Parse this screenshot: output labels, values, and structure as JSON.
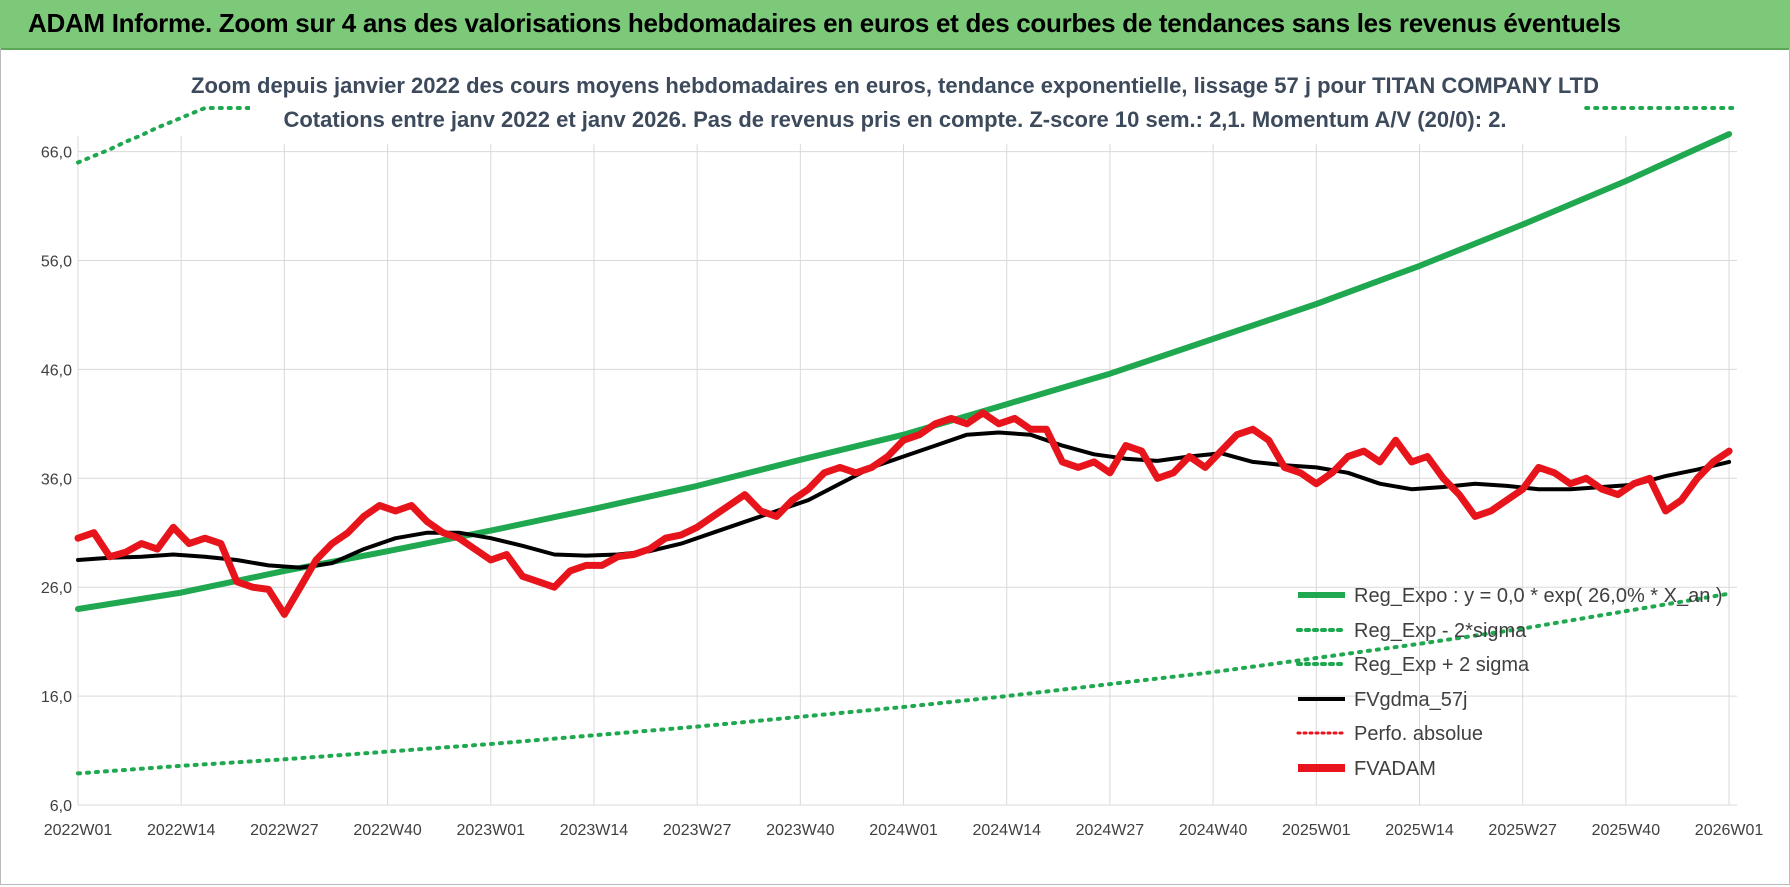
{
  "header": {
    "title": "ADAM Informe. Zoom sur 4 ans des valorisations hebdomadaires en euros et des courbes de tendances sans les revenus éventuels"
  },
  "colors": {
    "header_bg": "#7dc97a",
    "green": "#1fa84f",
    "black": "#000000",
    "red": "#e8141b"
  },
  "chart_data": {
    "type": "line",
    "title": "Zoom depuis janvier 2022 des cours moyens hebdomadaires en euros, tendance exponentielle, lissage 57 j pour TITAN COMPANY LTD",
    "subtitle": "Cotations entre janv 2022 et janv 2026. Pas de revenus pris en compte. Z-score 10 sem.: 2,1. Momentum A/V (20/0): 2.",
    "xlabel": "",
    "ylabel": "",
    "ylim": [
      6,
      70
    ],
    "yticks": [
      "66,0",
      "56,0",
      "46,0",
      "36,0",
      "26,0",
      "16,0",
      "6,0"
    ],
    "ytick_values": [
      66,
      56,
      46,
      36,
      26,
      16,
      6
    ],
    "xlim": [
      0,
      209
    ],
    "xticks": [
      "2022W01",
      "2022W14",
      "2022W27",
      "2022W40",
      "2023W01",
      "2023W14",
      "2023W27",
      "2023W40",
      "2024W01",
      "2024W14",
      "2024W27",
      "2024W40",
      "2025W01",
      "2025W14",
      "2025W27",
      "2025W40",
      "2026W01"
    ],
    "xtick_values": [
      0,
      13,
      26,
      39,
      52,
      65,
      78,
      91,
      104,
      117,
      130,
      143,
      156,
      169,
      182,
      195,
      208
    ],
    "grid": true,
    "legend_position": "bottom-right",
    "legend": [
      {
        "label": "Reg_Expo : y = 0,0 * exp( 26,0% * X_an )",
        "color": "#1fa84f",
        "style": "solid"
      },
      {
        "label": "Reg_Exp - 2*sigma",
        "color": "#1fa84f",
        "style": "dotted"
      },
      {
        "label": "Reg_Exp + 2 sigma",
        "color": "#1fa84f",
        "style": "dotted"
      },
      {
        "label": "FVgdma_57j",
        "color": "#000000",
        "style": "solid"
      },
      {
        "label": "Perfo. absolue",
        "color": "#e8141b",
        "style": "dotted"
      },
      {
        "label": "FVADAM",
        "color": "#e8141b",
        "style": "thick"
      }
    ],
    "series": [
      {
        "name": "Reg_Expo",
        "style": "solid-thick",
        "color": "#1fa84f",
        "x": [
          0,
          13,
          26,
          39,
          52,
          65,
          78,
          91,
          104,
          117,
          130,
          143,
          156,
          169,
          182,
          195,
          208
        ],
        "values": [
          24.0,
          25.5,
          27.5,
          29.3,
          31.2,
          33.2,
          35.3,
          37.7,
          40.0,
          42.8,
          45.6,
          48.8,
          52.0,
          55.5,
          59.3,
          63.3,
          67.6
        ]
      },
      {
        "name": "Reg_Exp - 2*sigma",
        "style": "dotted",
        "color": "#1fa84f",
        "x": [
          0,
          13,
          26,
          39,
          52,
          65,
          78,
          91,
          104,
          117,
          130,
          143,
          156,
          169,
          182,
          195,
          208
        ],
        "values": [
          8.9,
          9.6,
          10.2,
          10.9,
          11.6,
          12.4,
          13.2,
          14.1,
          15.0,
          16.0,
          17.1,
          18.2,
          19.5,
          20.8,
          22.2,
          23.8,
          25.4
        ]
      },
      {
        "name": "Reg_Exp + 2 sigma",
        "style": "dotted",
        "color": "#1fa84f",
        "x": [
          0,
          2,
          4,
          6,
          8,
          10,
          12,
          14,
          16,
          18,
          20,
          22,
          24,
          190,
          195,
          200,
          205,
          209
        ],
        "values": [
          65.0,
          65.6,
          66.2,
          66.9,
          67.5,
          68.2,
          68.8,
          69.4,
          70.0,
          70.0,
          70.0,
          70.0,
          70.0,
          70.0,
          70.0,
          70.0,
          70.0,
          70.0
        ],
        "segments": [
          [
            0,
            24
          ],
          [
            190,
            209
          ]
        ]
      },
      {
        "name": "FVgdma_57j",
        "style": "solid",
        "color": "#000000",
        "x": [
          0,
          4,
          8,
          12,
          16,
          20,
          24,
          28,
          32,
          36,
          40,
          44,
          48,
          52,
          56,
          60,
          64,
          68,
          72,
          76,
          80,
          84,
          88,
          92,
          96,
          100,
          104,
          108,
          112,
          116,
          120,
          124,
          128,
          132,
          136,
          140,
          144,
          148,
          152,
          156,
          160,
          164,
          168,
          172,
          176,
          180,
          184,
          188,
          192,
          196,
          200,
          204,
          208
        ],
        "values": [
          28.5,
          28.7,
          28.8,
          29.0,
          28.8,
          28.5,
          28.0,
          27.8,
          28.2,
          29.5,
          30.5,
          31.0,
          31.0,
          30.5,
          29.8,
          29.0,
          28.9,
          29.0,
          29.3,
          30.0,
          31.0,
          32.0,
          33.0,
          34.0,
          35.5,
          37.0,
          38.0,
          39.0,
          40.0,
          40.2,
          40.0,
          39.0,
          38.2,
          37.8,
          37.6,
          38.0,
          38.3,
          37.5,
          37.2,
          37.0,
          36.5,
          35.5,
          35.0,
          35.2,
          35.5,
          35.3,
          35.0,
          35.0,
          35.2,
          35.4,
          36.2,
          36.8,
          37.5
        ]
      },
      {
        "name": "FVADAM",
        "style": "thick",
        "color": "#e8141b",
        "x": [
          0,
          2,
          4,
          6,
          8,
          10,
          12,
          14,
          16,
          18,
          20,
          22,
          24,
          26,
          28,
          30,
          32,
          34,
          36,
          38,
          40,
          42,
          44,
          46,
          48,
          50,
          52,
          54,
          56,
          58,
          60,
          62,
          64,
          66,
          68,
          70,
          72,
          74,
          76,
          78,
          80,
          82,
          84,
          86,
          88,
          90,
          92,
          94,
          96,
          98,
          100,
          102,
          104,
          106,
          108,
          110,
          112,
          114,
          116,
          118,
          120,
          122,
          124,
          126,
          128,
          130,
          132,
          134,
          136,
          138,
          140,
          142,
          144,
          146,
          148,
          150,
          152,
          154,
          156,
          158,
          160,
          162,
          164,
          166,
          168,
          170,
          172,
          174,
          176,
          178,
          180,
          182,
          184,
          186,
          188,
          190,
          192,
          194,
          196,
          198,
          200,
          202,
          204,
          206,
          208
        ],
        "values": [
          30.5,
          31.0,
          28.8,
          29.2,
          30.0,
          29.5,
          31.5,
          30.0,
          30.5,
          30.0,
          26.5,
          26.0,
          25.8,
          23.5,
          26.0,
          28.5,
          30.0,
          31.0,
          32.5,
          33.5,
          33.0,
          33.5,
          32.0,
          31.0,
          30.5,
          29.5,
          28.5,
          29.0,
          27.0,
          26.5,
          26.0,
          27.5,
          28.0,
          28.0,
          28.8,
          29.0,
          29.5,
          30.5,
          30.8,
          31.5,
          32.5,
          33.5,
          34.5,
          33.0,
          32.5,
          34.0,
          35.0,
          36.5,
          37.0,
          36.5,
          37.0,
          38.0,
          39.5,
          40.0,
          41.0,
          41.5,
          41.0,
          42.0,
          41.0,
          41.5,
          40.5,
          40.5,
          37.5,
          37.0,
          37.5,
          36.5,
          39.0,
          38.5,
          36.0,
          36.5,
          38.0,
          37.0,
          38.5,
          40.0,
          40.5,
          39.5,
          37.0,
          36.5,
          35.5,
          36.5,
          38.0,
          38.5,
          37.5,
          39.5,
          37.5,
          38.0,
          36.0,
          34.5,
          32.5,
          33.0,
          34.0,
          35.0,
          37.0,
          36.5,
          35.5,
          36.0,
          35.0,
          34.5,
          35.5,
          36.0,
          33.0,
          34.0,
          36.0,
          37.5,
          38.5
        ]
      }
    ]
  }
}
